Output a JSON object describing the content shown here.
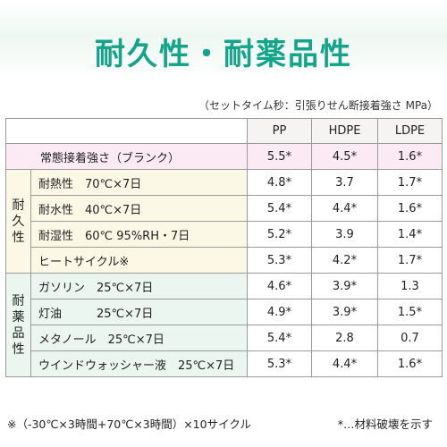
{
  "title": "耐久性・耐薬品性",
  "note": "（セットタイム秒：引張りせん断接着強さ MPa）",
  "columns": [
    "PP",
    "HDPE",
    "LDPE"
  ],
  "blank_row": {
    "label": "常態接着強さ（ブランク）",
    "values": [
      "5.5*",
      "4.5*",
      "1.6*"
    ]
  },
  "durability": {
    "group_label": "耐久性",
    "rows": [
      {
        "label": "耐熱性　70℃×7日",
        "values": [
          "4.8*",
          "3.7",
          "1.7*"
        ]
      },
      {
        "label": "耐水性　40℃×7日",
        "values": [
          "5.4*",
          "4.4*",
          "1.6*"
        ]
      },
      {
        "label": "耐湿性　60℃ 95%RH・7日",
        "values": [
          "5.2*",
          "3.9",
          "1.4*"
        ]
      },
      {
        "label": "ヒートサイクル※",
        "values": [
          "5.3*",
          "4.2*",
          "1.7*"
        ]
      }
    ]
  },
  "chemical": {
    "group_label": "耐薬品性",
    "rows": [
      {
        "label": "ガソリン　25℃×7日",
        "values": [
          "4.6*",
          "3.9*",
          "1.3"
        ]
      },
      {
        "label": "灯油　　　25℃×7日",
        "values": [
          "4.9*",
          "3.9*",
          "1.5*"
        ]
      },
      {
        "label": "メタノール　25℃×7日",
        "values": [
          "5.4*",
          "2.8",
          "0.7"
        ]
      },
      {
        "label": "ウインドウォッシャー液　25℃×7日",
        "values": [
          "5.3*",
          "4.4*",
          "1.6*"
        ]
      }
    ]
  },
  "footer_left": "※（-30℃×3時間+70℃×3時間）×10サイクル",
  "footer_right": "*…材料破壊を示す"
}
